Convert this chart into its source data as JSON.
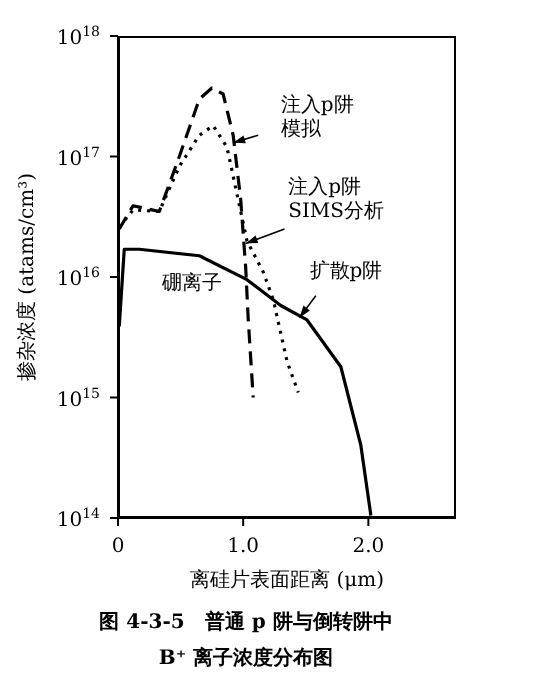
{
  "chart_data": {
    "type": "line",
    "title": "图 4-3-5　普通 p 阱与倒转阱中\nB⁺ 离子浓度分布图",
    "xlabel": "离硅片表面距离 (μm)",
    "ylabel": "掺杂浓度 (atams/cm³)",
    "annotations": [
      "硼离子"
    ],
    "log": "y",
    "xlim": [
      0,
      2.7
    ],
    "xticks": [
      {
        "value": 0,
        "label": "0"
      },
      {
        "value": 1,
        "label": "1.0"
      },
      {
        "value": 2,
        "label": "2.0"
      }
    ],
    "ylim": [
      100000000000000.0,
      1e+18
    ],
    "yticks": [
      {
        "value": 100000000000000.0,
        "label": "10$^{14}$"
      },
      {
        "value": 1000000000000000.0,
        "label": "10$^{15}$"
      },
      {
        "value": 1e+16,
        "label": "10$^{16}$"
      },
      {
        "value": 1e+17,
        "label": "10$^{17}$"
      },
      {
        "value": 1e+18,
        "label": "10$^{18}$"
      }
    ],
    "series": [
      {
        "name": "注入p阱模拟",
        "color": "#000000",
        "line_style": "dashed",
        "x": [
          0.01,
          0.12,
          0.33,
          0.49,
          0.65,
          0.75,
          0.84,
          0.92,
          0.98,
          1.02,
          1.04,
          1.08
        ],
        "values": [
          2.5e+16,
          3.9e+16,
          3.5e+16,
          1e+17,
          3e+17,
          3.7e+17,
          3.3e+17,
          1.5e+17,
          4.4e+16,
          1.2e+16,
          4500000000000000.0,
          1000000000000000.0
        ]
      },
      {
        "name": "注入p阱SIMS分析",
        "color": "#000000",
        "line_style": "dotted",
        "x": [
          0.01,
          0.12,
          0.33,
          0.49,
          0.65,
          0.76,
          0.87,
          0.95,
          1.03,
          1.16,
          1.24,
          1.35,
          1.44
        ],
        "values": [
          2.6e+16,
          3.6e+16,
          3.5e+16,
          8.3e+16,
          1.5e+17,
          1.8e+17,
          1.2e+17,
          4.9e+16,
          2e+16,
          1.1e+16,
          6500000000000000.0,
          2000000000000000.0,
          1100000000000000.0
        ]
      },
      {
        "name": "扩散p阱",
        "color": "#000000",
        "line_style": "solid",
        "x": [
          0.01,
          0.05,
          0.17,
          0.65,
          1.03,
          1.3,
          1.51,
          1.78,
          1.94,
          2.02
        ],
        "values": [
          3900000000000000.0,
          1.7e+16,
          1.7e+16,
          1.5e+16,
          9500000000000000.0,
          5800000000000000.0,
          4400000000000000.0,
          1800000000000000.0,
          400000000000000.0,
          105000000000000.0
        ]
      }
    ]
  }
}
